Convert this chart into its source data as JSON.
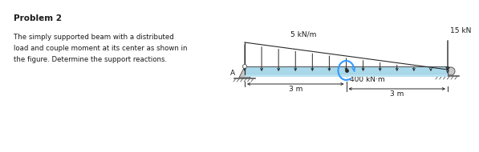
{
  "title": "Problem 2",
  "description_lines": [
    "The simply supported beam with a distributed",
    "load and couple moment at its center as shown in",
    "the figure. Determine the support reactions."
  ],
  "beam_label": "A",
  "dist_load_label": "5 kN/m",
  "point_load_label": "15 kN",
  "moment_label": "400 kN·m",
  "dim1_label": "3 m",
  "dim2_label": "3 m",
  "beam_color": "#a8d8ea",
  "beam_color_top": "#b8e0f0",
  "beam_edge": "#5a5a5a",
  "support_color": "#c8c8c8",
  "arrow_color": "#2a2a2a",
  "moment_color": "#3399ff",
  "bg_color": "#ffffff",
  "text_color": "#1a1a1a"
}
